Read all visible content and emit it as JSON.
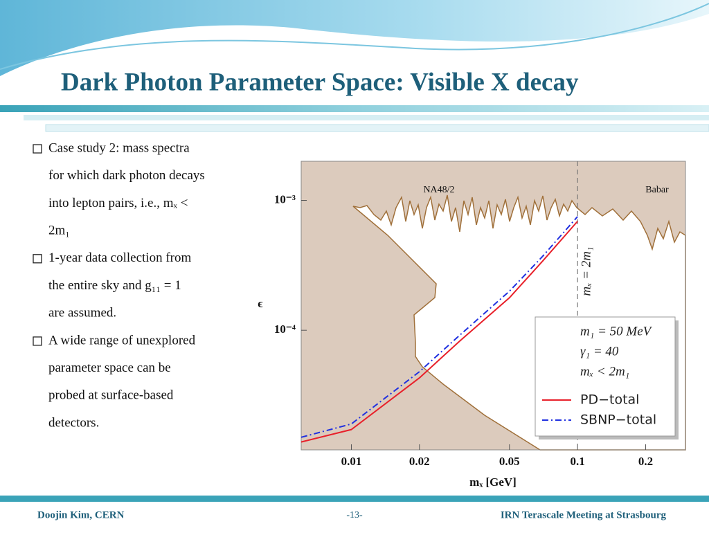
{
  "header": {
    "title": "Dark Photon Parameter Space: Visible X decay"
  },
  "bullets": [
    {
      "lines": [
        "Case study 2: mass spectra",
        "for which dark photon decays",
        "into lepton pairs, i.e., mₓ <",
        "2m₁"
      ]
    },
    {
      "lines": [
        "1-year data collection from",
        "the entire sky and g₁₁ = 1",
        "are assumed."
      ]
    },
    {
      "lines": [
        "A wide range of unexplored",
        "parameter space can be",
        "probed at surface-based",
        "detectors."
      ]
    }
  ],
  "footer": {
    "left": "Doojin Kim, CERN",
    "center": "-13-",
    "right": "IRN Terascale Meeting at Strasbourg"
  },
  "chart_data": {
    "type": "line",
    "xlabel": "mₓ [GeV]",
    "ylabel": "ϵ",
    "xscale": "log",
    "yscale": "log",
    "xlim": [
      0.006,
      0.3
    ],
    "ylim": [
      1.2e-05,
      0.002
    ],
    "xticks": [
      0.01,
      0.02,
      0.05,
      0.1,
      0.2
    ],
    "yticks": [
      {
        "value": 0.001,
        "label": "10⁻³"
      },
      {
        "value": 0.0001,
        "label": "10⁻⁴"
      }
    ],
    "x": [
      0.006,
      0.01,
      0.02,
      0.03,
      0.05,
      0.07,
      0.1
    ],
    "series": [
      {
        "name": "PD−total",
        "color": "#e8202a",
        "dash": "solid",
        "values": [
          1.38e-05,
          1.72e-05,
          4.3e-05,
          8.2e-05,
          0.000178,
          0.00034,
          0.00069
        ]
      },
      {
        "name": "SBNP−total",
        "color": "#2030e0",
        "dash": "dashdot",
        "values": [
          1.5e-05,
          1.9e-05,
          4.8e-05,
          9.1e-05,
          0.0002,
          0.00037,
          0.00075
        ]
      }
    ],
    "legend_notes": [
      "m₁ = 50 MeV",
      "γ₁ = 40",
      "mₓ < 2m₁"
    ],
    "vline": {
      "x": 0.1,
      "label": "mₓ = 2m₁"
    },
    "annotations": [
      "NA48/2",
      "Babar"
    ]
  }
}
